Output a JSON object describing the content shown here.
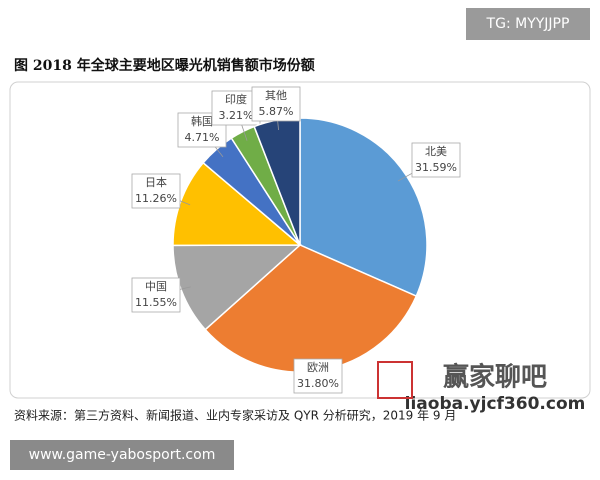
{
  "chart_data": {
    "type": "pie",
    "title": "图 2018 年全球主要地区曝光机销售额市场份额",
    "categories": [
      "北美",
      "欧洲",
      "中国",
      "日本",
      "韩国",
      "印度",
      "其他"
    ],
    "values": [
      31.59,
      31.8,
      11.55,
      11.26,
      4.71,
      3.21,
      5.87
    ],
    "value_labels": [
      "31.59%",
      "31.80%",
      "11.55%",
      "11.26%",
      "4.71%",
      "3.21%",
      "5.87%"
    ],
    "colors": [
      "#5b9bd5",
      "#ed7d31",
      "#a5a5a5",
      "#ffc000",
      "#4472c4",
      "#70ad47",
      "#264478"
    ],
    "source": "资料来源：第三方资料、新闻报道、业内专家采访及 QYR 分析研究，2019 年 9 月"
  },
  "overlays": {
    "tag": "TG: MYYJJPP",
    "watermark_title": "赢家聊吧",
    "watermark_url": "liaoba.yjcf360.com",
    "footer_url": "www.game-yabosport.com"
  }
}
